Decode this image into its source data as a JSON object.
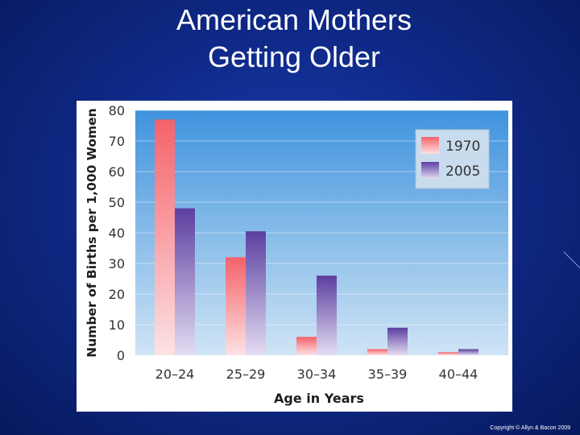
{
  "slide": {
    "title_line1": "American Mothers",
    "title_line2": "Getting Older",
    "copyright": "Copyright © Allyn & Bacon 2009"
  },
  "chart_data": {
    "type": "bar",
    "title": "",
    "xlabel": "Age in Years",
    "ylabel": "Number of Births per 1,000 Women",
    "categories": [
      "20–24",
      "25–29",
      "30–34",
      "35–39",
      "40–44"
    ],
    "series": [
      {
        "name": "1970",
        "values": [
          77,
          32,
          6,
          2,
          1
        ],
        "color": "#f4626a"
      },
      {
        "name": "2005",
        "values": [
          48,
          40.5,
          26,
          9,
          2
        ],
        "color": "#5b3fa0"
      }
    ],
    "ylim": [
      0,
      80
    ],
    "yticks": [
      "0",
      "10",
      "20",
      "30",
      "40",
      "50",
      "60",
      "70",
      "80"
    ],
    "grid": true,
    "legend_position": "top-right",
    "colors": {
      "plot_bg_top": "#3f93dd",
      "plot_bg_bottom": "#cfe4f5"
    }
  }
}
